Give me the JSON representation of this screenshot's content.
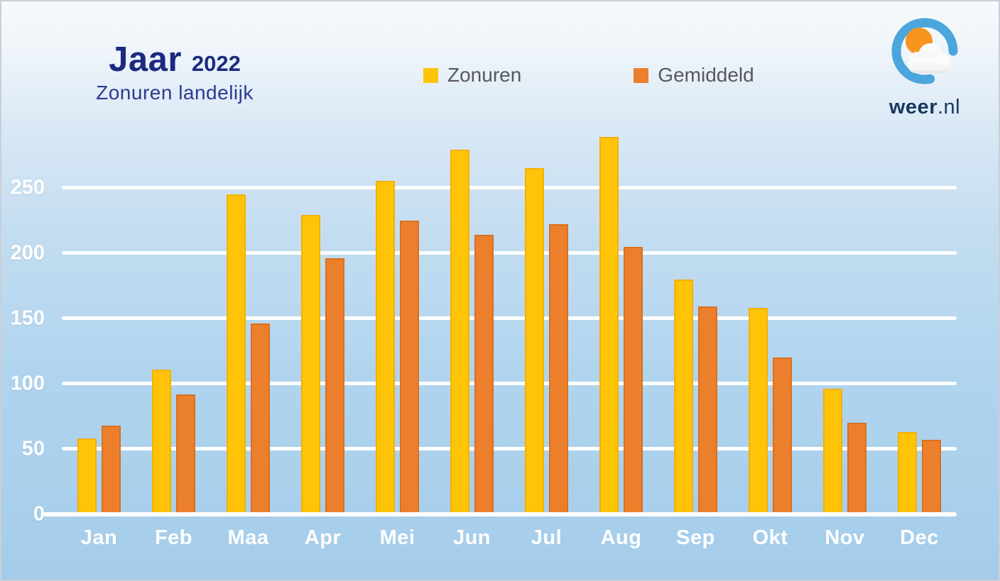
{
  "header": {
    "title": "Jaar",
    "year": "2022",
    "subtitle": "Zonuren landelijk"
  },
  "logo": {
    "brand_bold": "weer",
    "brand_suffix": ".nl"
  },
  "colors": {
    "zonuren_yellow": "#ffc408",
    "zonuren_border": "#f4b004",
    "gemiddeld_orange": "#ec7f2b",
    "gemiddeld_border": "#da701f",
    "title_navy": "#1c2b80",
    "subtitle_blue": "#2c3b90",
    "legend_text_gray": "#57585c",
    "gridline_white": "#ffffff",
    "logo_ring_blue": "#4aa6dc",
    "logo_sun_orange": "#f7951e",
    "brand_navy": "#16395e"
  },
  "chart_data": {
    "type": "bar",
    "title": "Jaar 2022",
    "subtitle": "Zonuren landelijk",
    "categories": [
      "Jan",
      "Feb",
      "Maa",
      "Apr",
      "Mei",
      "Jun",
      "Jul",
      "Aug",
      "Sep",
      "Okt",
      "Nov",
      "Dec"
    ],
    "series": [
      {
        "name": "Zonuren",
        "color": "#ffc408",
        "border": "#f4b004",
        "values": [
          58,
          111,
          245,
          229,
          255,
          279,
          265,
          289,
          180,
          158,
          96,
          63
        ]
      },
      {
        "name": "Gemiddeld",
        "color": "#ec7f2b",
        "border": "#da701f",
        "values": [
          68,
          92,
          146,
          196,
          225,
          214,
          222,
          205,
          159,
          120,
          70,
          57
        ]
      }
    ],
    "xlabel": "",
    "ylabel": "",
    "yticks": [
      0,
      50,
      100,
      150,
      200,
      250
    ],
    "ylim": [
      0,
      290
    ],
    "grid": "horizontal white lines",
    "legend_position": "top-center"
  }
}
